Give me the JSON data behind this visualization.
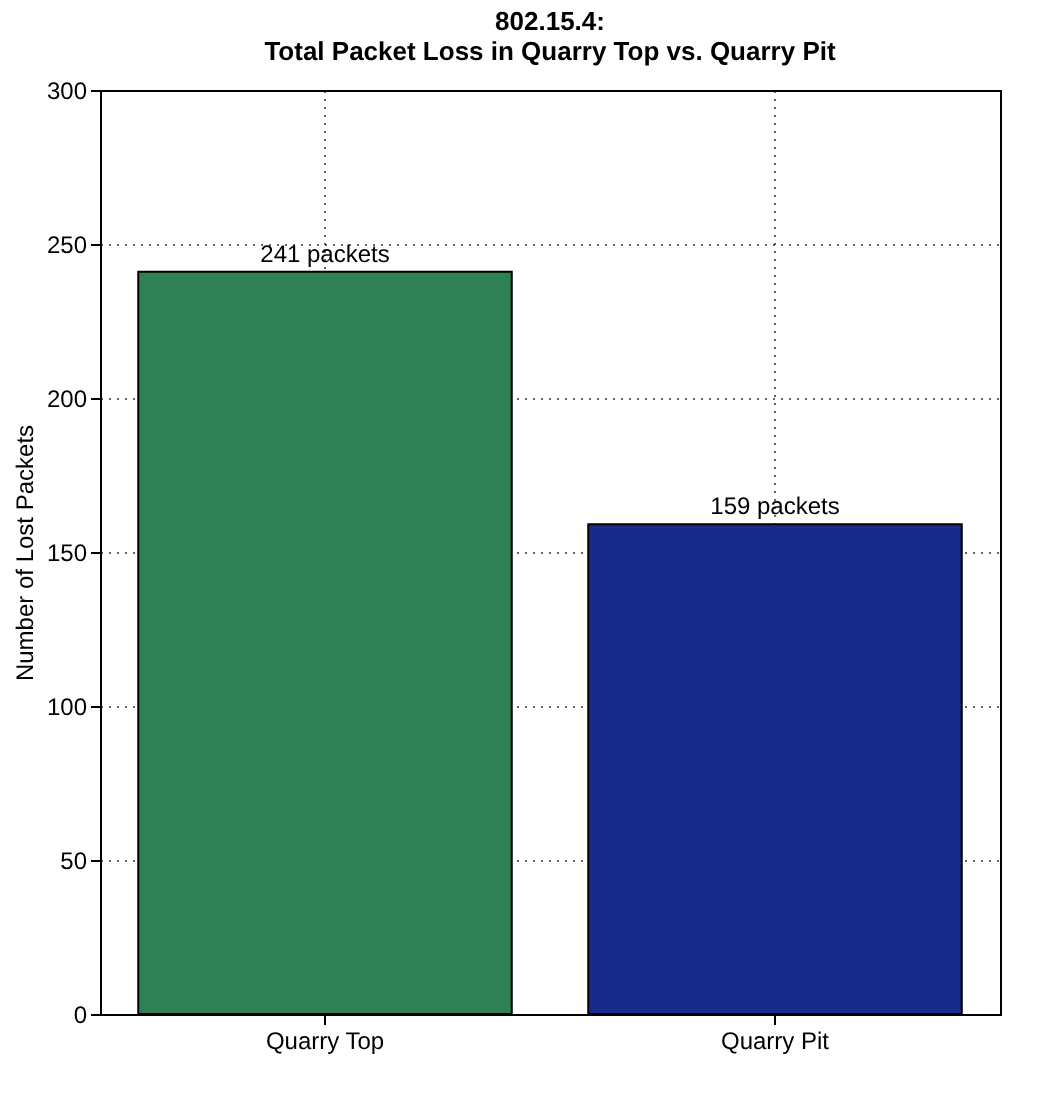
{
  "chart_data": {
    "type": "bar",
    "title": "802.15.4:\nTotal Packet Loss in Quarry Top vs. Quarry Pit",
    "ylabel": "Number of Lost Packets",
    "categories": [
      "Quarry Top",
      "Quarry Pit"
    ],
    "values": [
      241,
      159
    ],
    "colors": [
      "#2e8055",
      "#172c8a"
    ],
    "value_labels": [
      "241 packets",
      "159 packets"
    ],
    "ylim": [
      0,
      300
    ],
    "yticks": [
      0,
      50,
      100,
      150,
      200,
      250,
      300
    ],
    "grid": true
  }
}
